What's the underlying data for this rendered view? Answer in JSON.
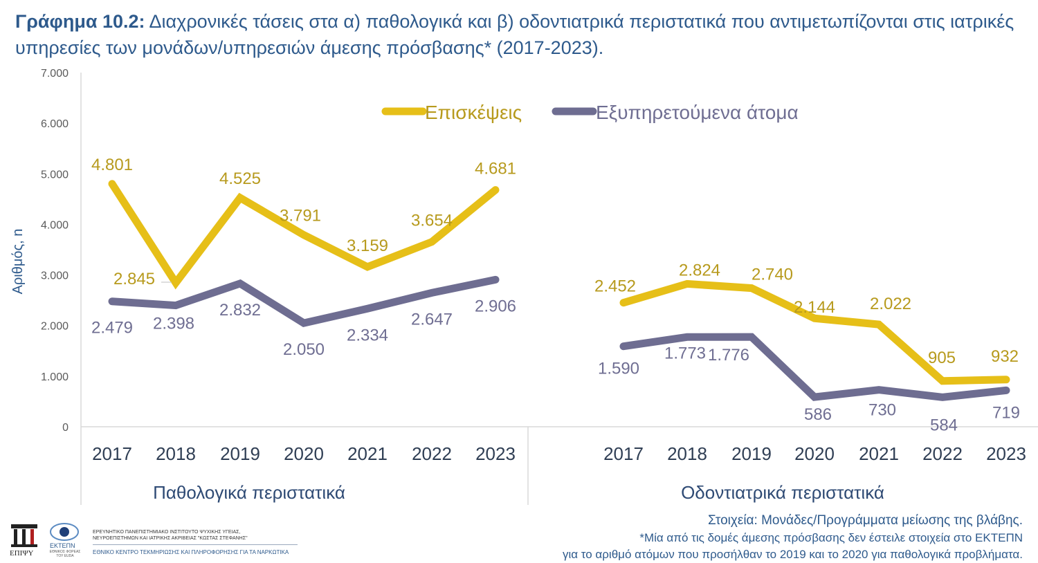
{
  "title": {
    "label": "Γράφημα 10.2:",
    "text": " Διαχρονικές τάσεις στα α) παθολογικά και β) οδοντιατρικά περιστατικά που αντιμετωπίζονται στις ιατρικές υπηρεσίες των μονάδων/υπηρεσιών άμεσης πρόσβασης* (2017-2023)."
  },
  "colors": {
    "visits": "#e6bf18",
    "people": "#6e6d91",
    "visits_label": "#b79a1d",
    "people_label": "#6f6e92",
    "title": "#2e5a8c",
    "grid_axis": "#d9d9d9"
  },
  "chart_data": {
    "type": "line",
    "ylabel": "Αριθμός, n",
    "ylim": [
      0,
      7000
    ],
    "yticks": [
      "0",
      "1.000",
      "2.000",
      "3.000",
      "4.000",
      "5.000",
      "6.000",
      "7.000"
    ],
    "grid": false,
    "legend_position": "top-center",
    "groups": [
      {
        "name": "Παθολογικά περιστατικά",
        "categories": [
          "2017",
          "2018",
          "2019",
          "2020",
          "2021",
          "2022",
          "2023"
        ],
        "series": [
          {
            "name": "Επισκέψεις",
            "values": [
              4801,
              2845,
              4525,
              3791,
              3159,
              3654,
              4681
            ],
            "labels": [
              "4.801",
              "2.845",
              "4.525",
              "3.791",
              "3.159",
              "3.654",
              "4.681"
            ]
          },
          {
            "name": "Εξυπηρετούμενα άτομα",
            "values": [
              2479,
              2398,
              2832,
              2050,
              2334,
              2647,
              2906
            ],
            "labels": [
              "2.479",
              "2.398",
              "2.832",
              "2.050",
              "2.334",
              "2.647",
              "2.906"
            ]
          }
        ]
      },
      {
        "name": "Οδοντιατρικά περιστατικά",
        "categories": [
          "2017",
          "2018",
          "2019",
          "2020",
          "2021",
          "2022",
          "2023"
        ],
        "series": [
          {
            "name": "Επισκέψεις",
            "values": [
              2452,
              2824,
              2740,
              2144,
              2022,
              905,
              932
            ],
            "labels": [
              "2.452",
              "2.824",
              "2.740",
              "2.144",
              "2.022",
              "905",
              "932"
            ]
          },
          {
            "name": "Εξυπηρετούμενα άτομα",
            "values": [
              1590,
              1773,
              1776,
              586,
              730,
              584,
              719
            ],
            "labels": [
              "1.590",
              "1.773",
              "1.776",
              "586",
              "730",
              "584",
              "719"
            ]
          }
        ]
      }
    ]
  },
  "footer": {
    "source": "Στοιχεία: Μονάδες/Προγράμματα μείωσης της βλάβης.",
    "notes": [
      "*Μία από τις δομές άμεσης πρόσβασης δεν έστειλε στοιχεία στο ΕΚΤΕΠΝ",
      "για το αριθμό ατόμων που προσήλθαν το 2019 και το 2020 για παθολογικά προβλήματα."
    ]
  },
  "logos": {
    "epipsy": "ΕΠΙΨΥ",
    "ektepn": "ΕΚΤΕΠΝ",
    "ektepn_sub": "ΕΘΝΙΚΟΣ ΦΟΡΕΑΣ ΤΟΥ EUDA",
    "institute_line1": "ΕΡΕΥΝΗΤΙΚΟ ΠΑΝΕΠΙΣΤΗΜΙΑΚΟ ΙΝΣΤΙΤΟΥΤΟ ΨΥΧΙΚΗΣ ΥΓΕΙΑΣ,",
    "institute_line2": "ΝΕΥΡΟΕΠΙΣΤΗΜΩΝ ΚΑΙ ΙΑΤΡΙΚΗΣ ΑΚΡΙΒΕΙΑΣ \"ΚΩΣΤΑΣ ΣΤΕΦΑΝΗΣ\"",
    "centre": "ΕΘΝΙΚΟ ΚΕΝΤΡΟ ΤΕΚΜΗΡΙΩΣΗΣ ΚΑΙ ΠΛΗΡΟΦΟΡΗΣΗΣ ΓΙΑ ΤΑ ΝΑΡΚΩΤΙΚΑ"
  }
}
